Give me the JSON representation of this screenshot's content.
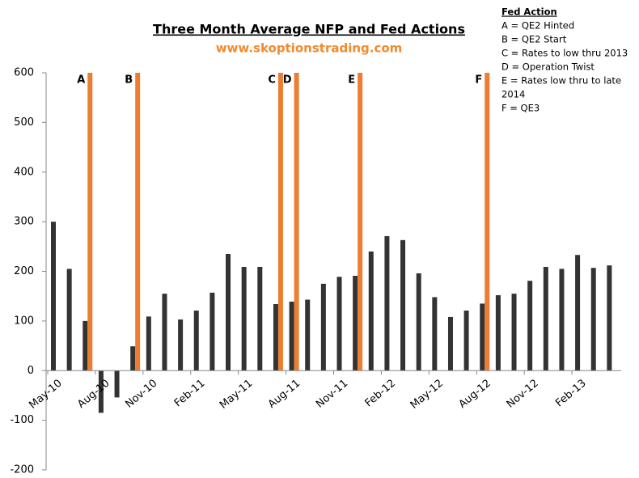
{
  "chart_data": {
    "type": "bar",
    "title": "Three Month Average NFP and Fed Actions",
    "subtitle": "www.skoptionstrading.com",
    "categories": [
      "May-10",
      null,
      null,
      "Aug-10",
      null,
      null,
      "Nov-10",
      null,
      null,
      "Feb-11",
      null,
      null,
      "May-11",
      null,
      null,
      "Aug-11",
      null,
      null,
      "Nov-11",
      null,
      null,
      "Feb-12",
      null,
      null,
      "May-12",
      null,
      null,
      "Aug-12",
      null,
      null,
      "Nov-12",
      null,
      null,
      "Feb-13",
      null,
      null
    ],
    "series": [
      {
        "color": "#333333",
        "values": [
          300,
          205,
          100,
          -85,
          -54,
          49,
          109,
          155,
          103,
          121,
          157,
          235,
          209,
          209,
          134,
          139,
          143,
          175,
          189,
          191,
          240,
          271,
          263,
          196,
          148,
          108,
          121,
          135,
          152,
          155,
          181,
          209,
          205,
          233,
          207,
          212
        ]
      },
      {
        "name": "Fed Action",
        "color": "#ed7d31",
        "values": [
          null,
          null,
          600,
          null,
          null,
          600,
          null,
          null,
          null,
          null,
          null,
          null,
          null,
          null,
          600,
          600,
          null,
          null,
          null,
          600,
          null,
          null,
          null,
          null,
          null,
          null,
          null,
          600,
          null,
          null,
          null,
          null,
          null,
          null,
          null,
          null
        ],
        "labels": [
          null,
          null,
          "A",
          null,
          null,
          "B",
          null,
          null,
          null,
          null,
          null,
          null,
          null,
          null,
          "C",
          "D",
          null,
          null,
          null,
          "E",
          null,
          null,
          null,
          null,
          null,
          null,
          null,
          "F",
          null,
          null,
          null,
          null,
          null,
          null,
          null,
          null
        ]
      }
    ],
    "legend_lines": [
      "A = QE2 Hinted",
      "B = QE2 Start",
      "C = Rates to low thru 2013",
      "D = Operation Twist",
      "E = Rates low thru to late",
      "2014",
      "F  = QE3"
    ],
    "ylim": [
      -200,
      600
    ],
    "yticks": [
      -200,
      -100,
      0,
      100,
      200,
      300,
      400,
      500,
      600
    ],
    "grid": false
  }
}
